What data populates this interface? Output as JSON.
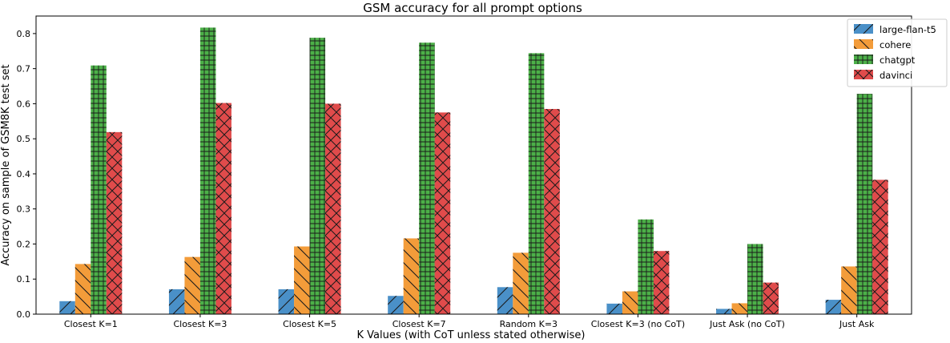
{
  "chart_data": {
    "type": "bar",
    "title": "GSM accuracy for all prompt options",
    "xlabel": "K Values (with CoT unless stated otherwise)",
    "ylabel": "Accuracy on sample of GSM8K test set",
    "categories": [
      "Closest K=1",
      "Closest K=3",
      "Closest K=5",
      "Closest K=7",
      "Random K=3",
      "Closest K=3 (no CoT)",
      "Just Ask (no CoT)",
      "Just Ask"
    ],
    "series": [
      {
        "name": "large-flan-t5",
        "color": "#4a90c8",
        "hatch": "diagonal",
        "values": [
          0.037,
          0.071,
          0.071,
          0.052,
          0.077,
          0.03,
          0.015,
          0.041
        ]
      },
      {
        "name": "cohere",
        "color": "#f39c3a",
        "hatch": "backdiagonal",
        "values": [
          0.143,
          0.163,
          0.193,
          0.216,
          0.175,
          0.065,
          0.031,
          0.136
        ]
      },
      {
        "name": "chatgpt",
        "color": "#4cb048",
        "hatch": "grid",
        "values": [
          0.709,
          0.817,
          0.788,
          0.774,
          0.744,
          0.27,
          0.2,
          0.628
        ]
      },
      {
        "name": "davinci",
        "color": "#e04b4b",
        "hatch": "cross",
        "values": [
          0.519,
          0.602,
          0.6,
          0.575,
          0.585,
          0.18,
          0.09,
          0.383
        ]
      }
    ],
    "ylim": [
      0,
      0.85
    ],
    "yticks": [
      "0.0",
      "0.1",
      "0.2",
      "0.3",
      "0.4",
      "0.5",
      "0.6",
      "0.7",
      "0.8"
    ],
    "grid": false,
    "legend": "top-right"
  }
}
